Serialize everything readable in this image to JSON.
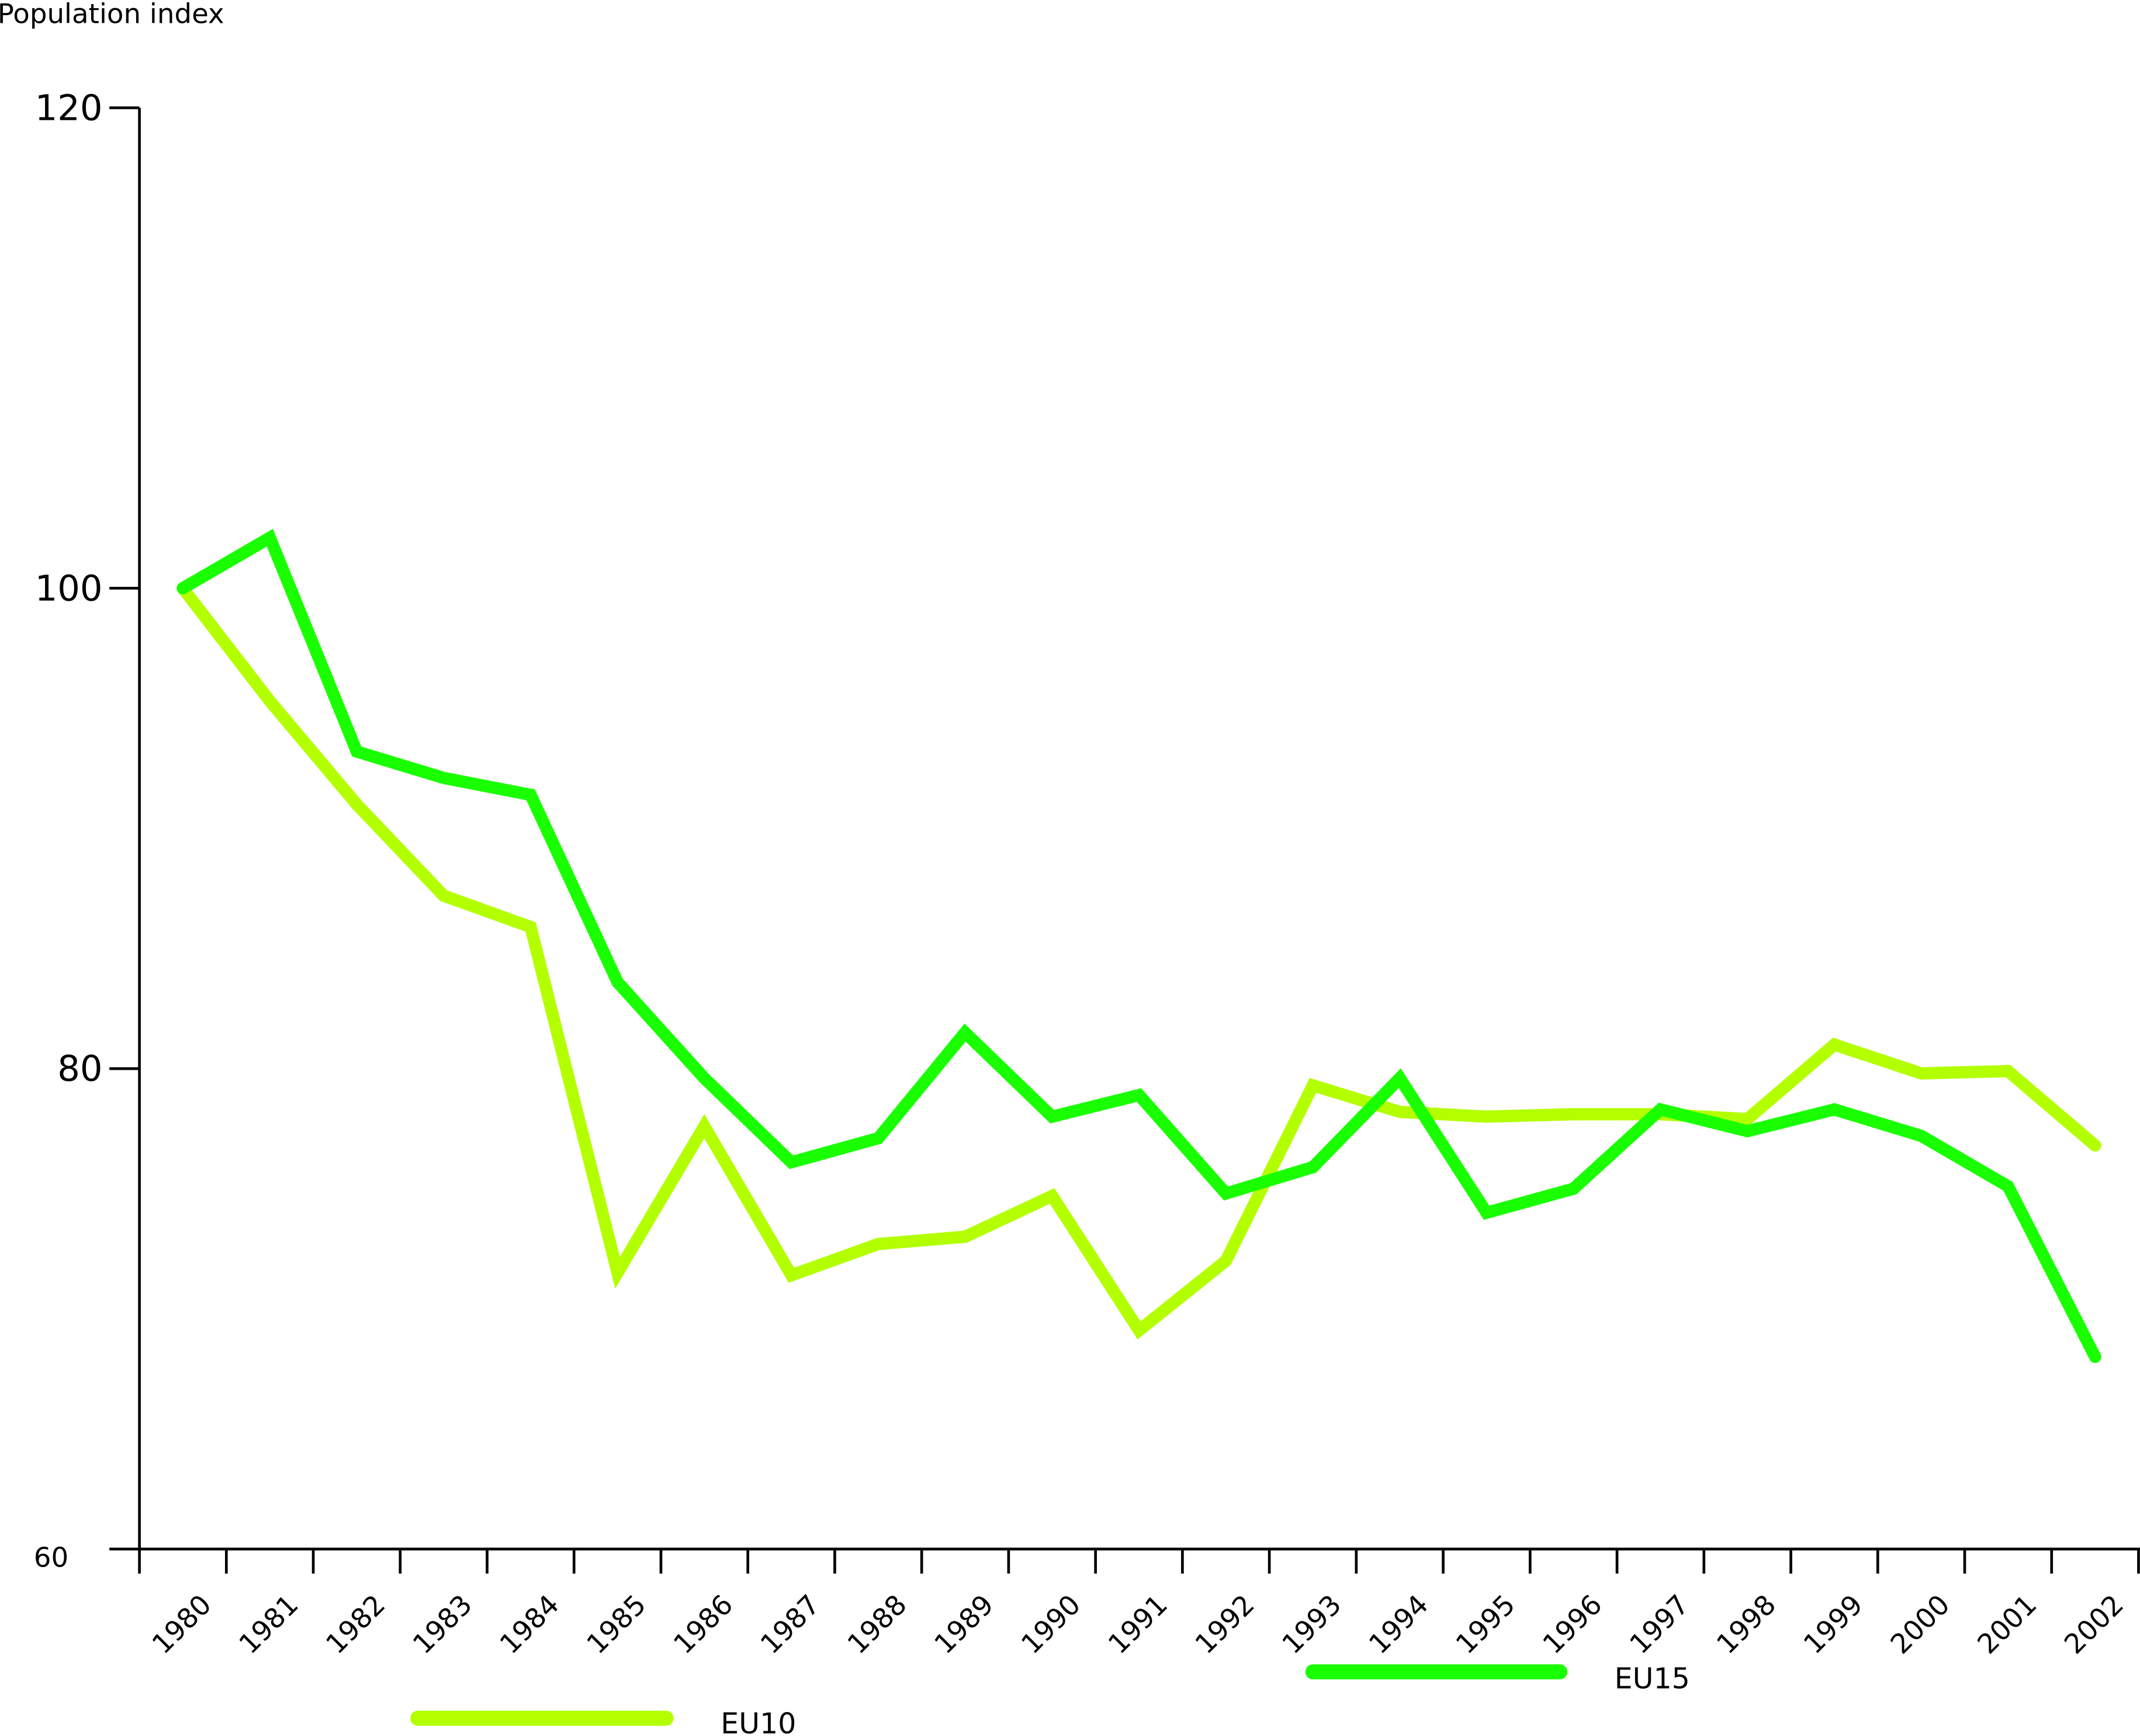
{
  "chart_data": {
    "type": "line",
    "title": "",
    "ylabel": "Population index",
    "xlabel": "",
    "ylim": [
      60,
      120
    ],
    "yticks": [
      60,
      80,
      100,
      120
    ],
    "x": [
      "1980",
      "1981",
      "1982",
      "1983",
      "1984",
      "1985",
      "1986",
      "1987",
      "1988",
      "1989",
      "1990",
      "1991",
      "1992",
      "1993",
      "1994",
      "1995",
      "1996",
      "1997",
      "1998",
      "1999",
      "2000",
      "2001",
      "2002"
    ],
    "series": [
      {
        "name": "EU10",
        "color": "#b3ff00",
        "values": [
          100,
          95.3,
          91.0,
          87.2,
          85.9,
          71.5,
          77.6,
          71.4,
          72.7,
          73.0,
          74.7,
          69.1,
          72.0,
          79.3,
          78.2,
          78.0,
          78.1,
          78.1,
          77.9,
          81.0,
          79.8,
          79.9,
          76.8
        ]
      },
      {
        "name": "EU15",
        "color": "#1aff00",
        "values": [
          100,
          102.1,
          93.2,
          92.1,
          91.4,
          83.6,
          79.6,
          76.1,
          77.1,
          81.5,
          78.0,
          78.9,
          74.8,
          75.9,
          79.6,
          74.0,
          75.0,
          78.3,
          77.4,
          78.3,
          77.2,
          75.1,
          68.0
        ]
      }
    ],
    "grid": false,
    "legend": "bottom"
  }
}
